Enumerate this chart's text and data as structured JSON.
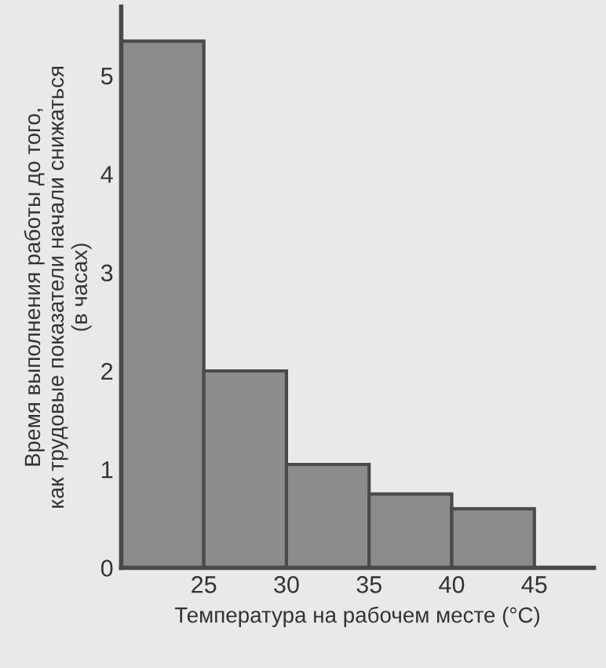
{
  "chart_data": {
    "type": "histogram",
    "xlabel": "Температура на рабочем месте (°C)",
    "ylabel": "Время выполнения работы до того,\nкак трудовые показатели начали снижаться\n(в часах)",
    "bins": [
      20,
      25,
      30,
      35,
      40,
      45
    ],
    "values": [
      5.35,
      2.0,
      1.05,
      0.75,
      0.6
    ],
    "color": "#8c8c8c",
    "xlim": [
      20,
      48.6
    ],
    "ylim": [
      0,
      5.7
    ],
    "xticks": [
      25,
      30,
      35,
      40,
      45
    ],
    "yticks": [
      0,
      1,
      2,
      3,
      4,
      5
    ],
    "grid": false,
    "legend": false
  }
}
